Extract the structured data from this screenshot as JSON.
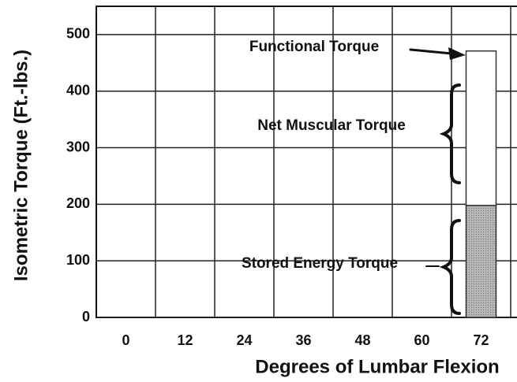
{
  "chart_data": {
    "type": "bar",
    "stacked": true,
    "x_label": "Degrees of Lumbar Flexion",
    "y_label": "Isometric Torque (Ft.-lbs.)",
    "categories": [
      "0",
      "12",
      "24",
      "36",
      "48",
      "60",
      "72"
    ],
    "series": [
      {
        "name": "Stored Energy Torque",
        "color": "#a9a9a9",
        "values": [
          null,
          null,
          null,
          null,
          null,
          null,
          198
        ]
      },
      {
        "name": "Net Muscular Torque",
        "color": "#ffffff",
        "values": [
          null,
          null,
          null,
          null,
          null,
          null,
          273
        ]
      }
    ],
    "annotations": [
      "Functional Torque"
    ],
    "ylim": [
      0,
      550
    ],
    "yticks": [
      0,
      100,
      200,
      300,
      400,
      500
    ],
    "grid": true
  }
}
